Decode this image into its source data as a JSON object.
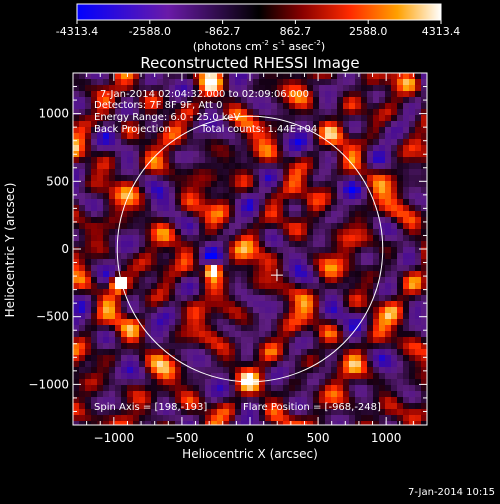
{
  "chart_data": {
    "type": "heatmap",
    "title": "Reconstructed RHESSI Image",
    "xlabel": "Heliocentric X (arcsec)",
    "ylabel": "Heliocentric Y (arcsec)",
    "xlim": [
      -1300,
      1300
    ],
    "ylim": [
      -1300,
      1300
    ],
    "xticks": [
      -1000,
      -500,
      0,
      500,
      1000
    ],
    "yticks": [
      -1000,
      -500,
      0,
      500,
      1000
    ],
    "colorbar": {
      "min": -4313.4,
      "max": 4313.4,
      "ticks": [
        "-4313.4",
        "-2588.0",
        "-862.7",
        "862.7",
        "2588.0",
        "4313.4"
      ],
      "unit_prefix": "(photons cm",
      "unit_exp1": "-2",
      "unit_mid": " s",
      "unit_exp2": "-1",
      "unit_mid2": " asec",
      "unit_exp3": "-2",
      "unit_suffix": ")"
    },
    "annotations": {
      "time_range": "7-Jan-2014 02:04:32.000 to 02:09:06.000",
      "detectors": "Detectors: 7F 8F 9F, Att 0",
      "energy_range": "Energy Range: 6.0 - 25.0 keV",
      "method": "Back Projection",
      "total_counts": "Total counts: 1.44E+04",
      "spin_axis": "Spin Axis = [198,-193]",
      "flare_position": "Flare Position = [-968,-248]"
    },
    "solar_limb_radius_arcsec": 975,
    "spin_axis_marker": [
      198,
      -193
    ],
    "bright_sources": [
      {
        "x": -968,
        "y": -248,
        "intensity": 4313
      },
      {
        "x": -270,
        "y": -150,
        "intensity": 4100
      }
    ]
  },
  "footer": {
    "timestamp": "7-Jan-2014 10:15"
  }
}
